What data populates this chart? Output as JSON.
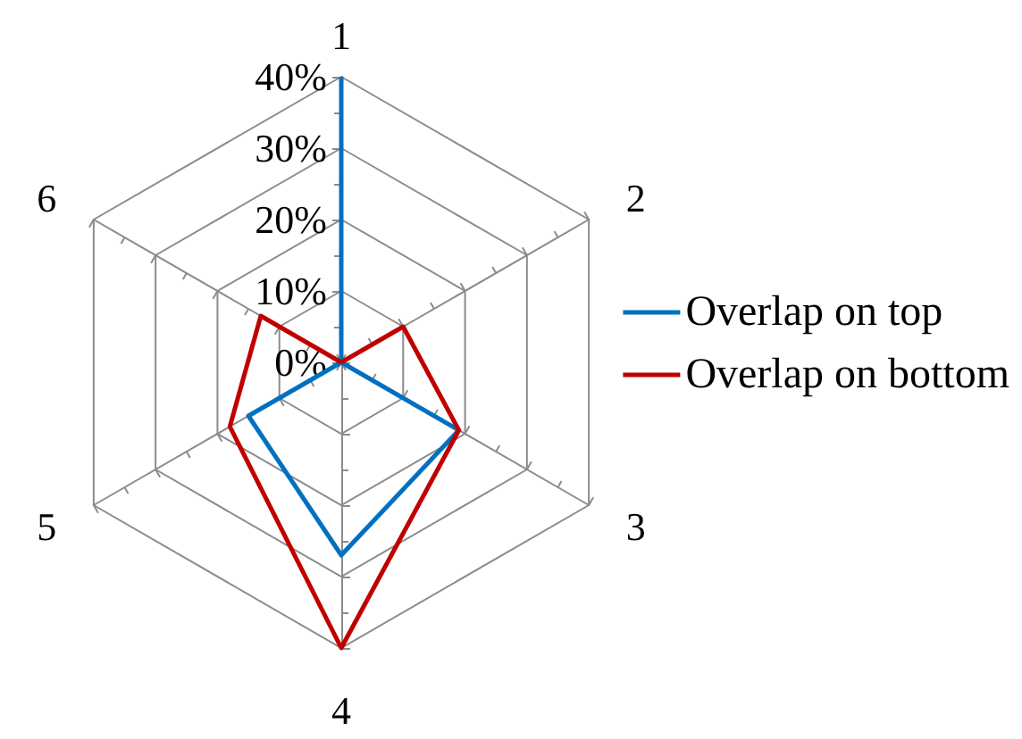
{
  "chart_data": {
    "type": "radar",
    "categories": [
      "1",
      "2",
      "3",
      "4",
      "5",
      "6"
    ],
    "series": [
      {
        "name": "Overlap on top",
        "color": "#0070c0",
        "values": [
          40,
          0,
          19,
          27,
          15,
          0
        ]
      },
      {
        "name": "Overlap on bottom",
        "color": "#c00000",
        "values": [
          0,
          10,
          19,
          40,
          18,
          13
        ]
      }
    ],
    "ylim": [
      0,
      40
    ],
    "yticks": [
      {
        "value": 0,
        "label": "0%"
      },
      {
        "value": 10,
        "label": "10%"
      },
      {
        "value": 20,
        "label": "20%"
      },
      {
        "value": 30,
        "label": "30%"
      },
      {
        "value": 40,
        "label": "40%"
      }
    ],
    "grid": true,
    "legend": "right",
    "marker": "none",
    "line_style": "solid"
  }
}
